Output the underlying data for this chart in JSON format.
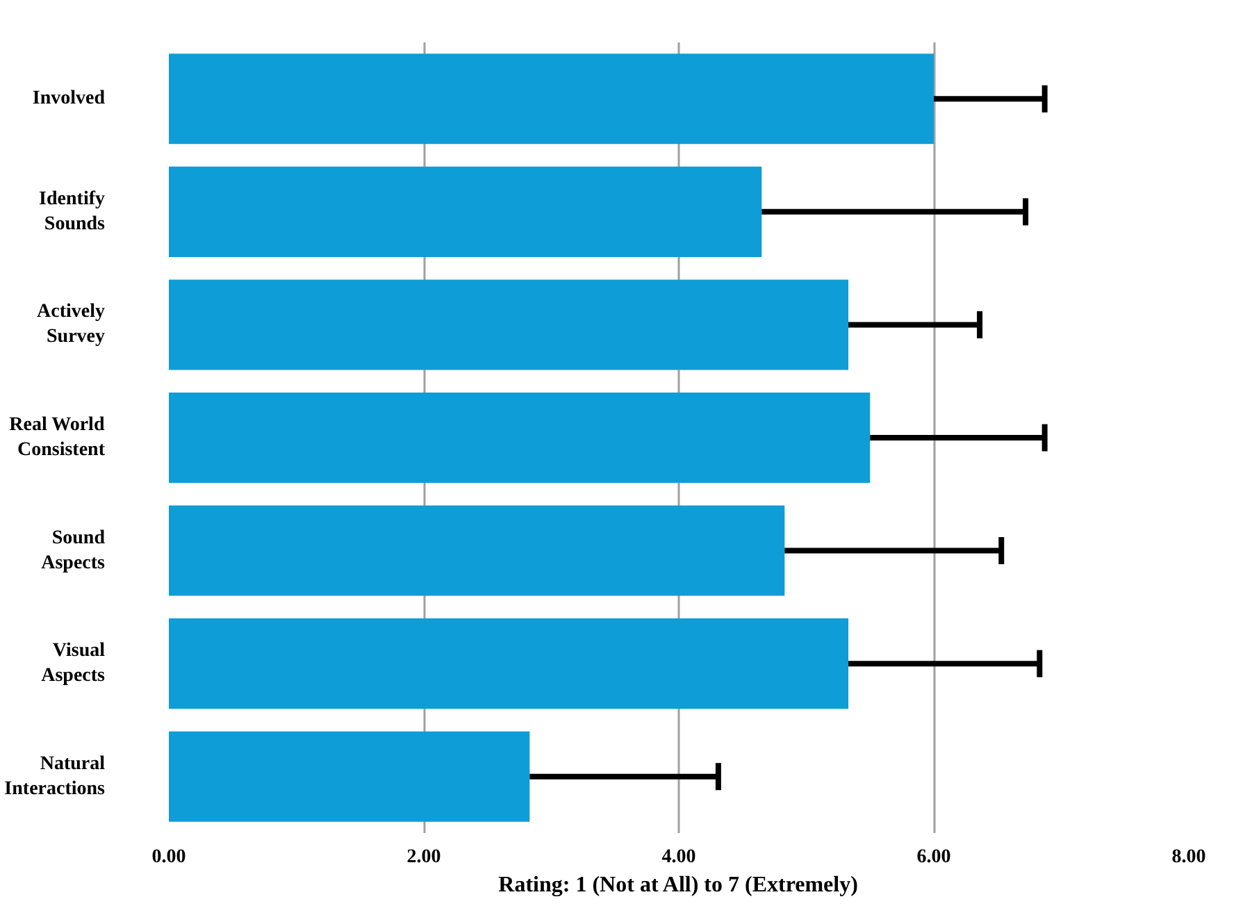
{
  "chart_data": {
    "type": "bar",
    "orientation": "horizontal",
    "categories": [
      "Involved",
      "Identify\nSounds",
      "Actively\nSurvey",
      "Real World\nConsistent",
      "Sound\nAspects",
      "Visual\nAspects",
      "Natural\nInteractions"
    ],
    "values": [
      6.0,
      4.65,
      5.33,
      5.5,
      4.83,
      5.33,
      2.83
    ],
    "errors": [
      [
        6.0,
        6.87
      ],
      [
        4.65,
        6.72
      ],
      [
        5.33,
        6.36
      ],
      [
        5.5,
        6.87
      ],
      [
        4.83,
        6.53
      ],
      [
        5.33,
        6.83
      ],
      [
        2.83,
        4.31
      ]
    ],
    "color": "#0f9dd7",
    "xlabel": "Rating: 1 (Not at All) to 7 (Extremely)",
    "xlim": [
      0,
      8
    ],
    "xticks": [
      {
        "value": 0,
        "label": "0.00"
      },
      {
        "value": 2,
        "label": "2.00"
      },
      {
        "value": 4,
        "label": "4.00"
      },
      {
        "value": 6,
        "label": "6.00"
      },
      {
        "value": 8,
        "label": "8.00"
      }
    ],
    "grid": "x"
  }
}
